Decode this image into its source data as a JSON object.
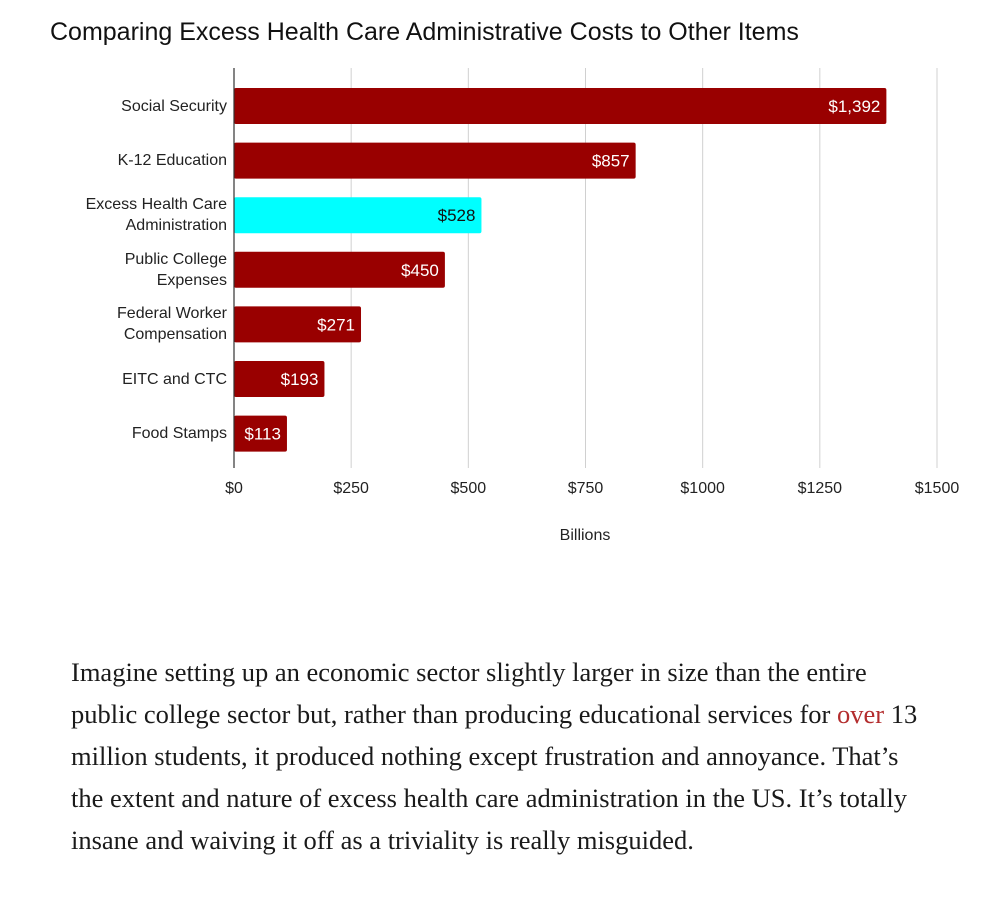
{
  "chart_data": {
    "type": "bar",
    "orientation": "horizontal",
    "title": "Comparing Excess Health Care Administrative Costs to Other Items",
    "xlabel": "Billions",
    "ylabel": "",
    "xlim": [
      0,
      1500
    ],
    "ticks": [
      "$0",
      "$250",
      "$500",
      "$750",
      "$1000",
      "$1250",
      "$1500"
    ],
    "grid": true,
    "categories": [
      [
        "Social Security"
      ],
      [
        "K-12 Education"
      ],
      [
        "Excess Health Care",
        "Administration"
      ],
      [
        "Public College",
        "Expenses"
      ],
      [
        "Federal Worker",
        "Compensation"
      ],
      [
        "EITC and CTC"
      ],
      [
        "Food Stamps"
      ]
    ],
    "values": [
      1392,
      857,
      528,
      450,
      271,
      193,
      113
    ],
    "data_labels": [
      "$1,392",
      "$857",
      "$528",
      "$450",
      "$271",
      "$193",
      "$113"
    ],
    "bar_colors": [
      "#990000",
      "#990000",
      "#00ffff",
      "#990000",
      "#990000",
      "#990000",
      "#990000"
    ],
    "label_colors": [
      "#ffffff",
      "#ffffff",
      "#111111",
      "#ffffff",
      "#ffffff",
      "#ffffff",
      "#ffffff"
    ]
  },
  "article": {
    "text_before_link": "Imagine setting up an economic sector slightly larger in size than the entire public college sector but, rather than producing educational services for ",
    "link_text": "over",
    "text_after_link": " 13 million students, it produced nothing except frustration and annoyance. That’s the extent and nature of excess health care administration in the US. It’s totally insane and waiving it off as a triviality is really misguided."
  }
}
